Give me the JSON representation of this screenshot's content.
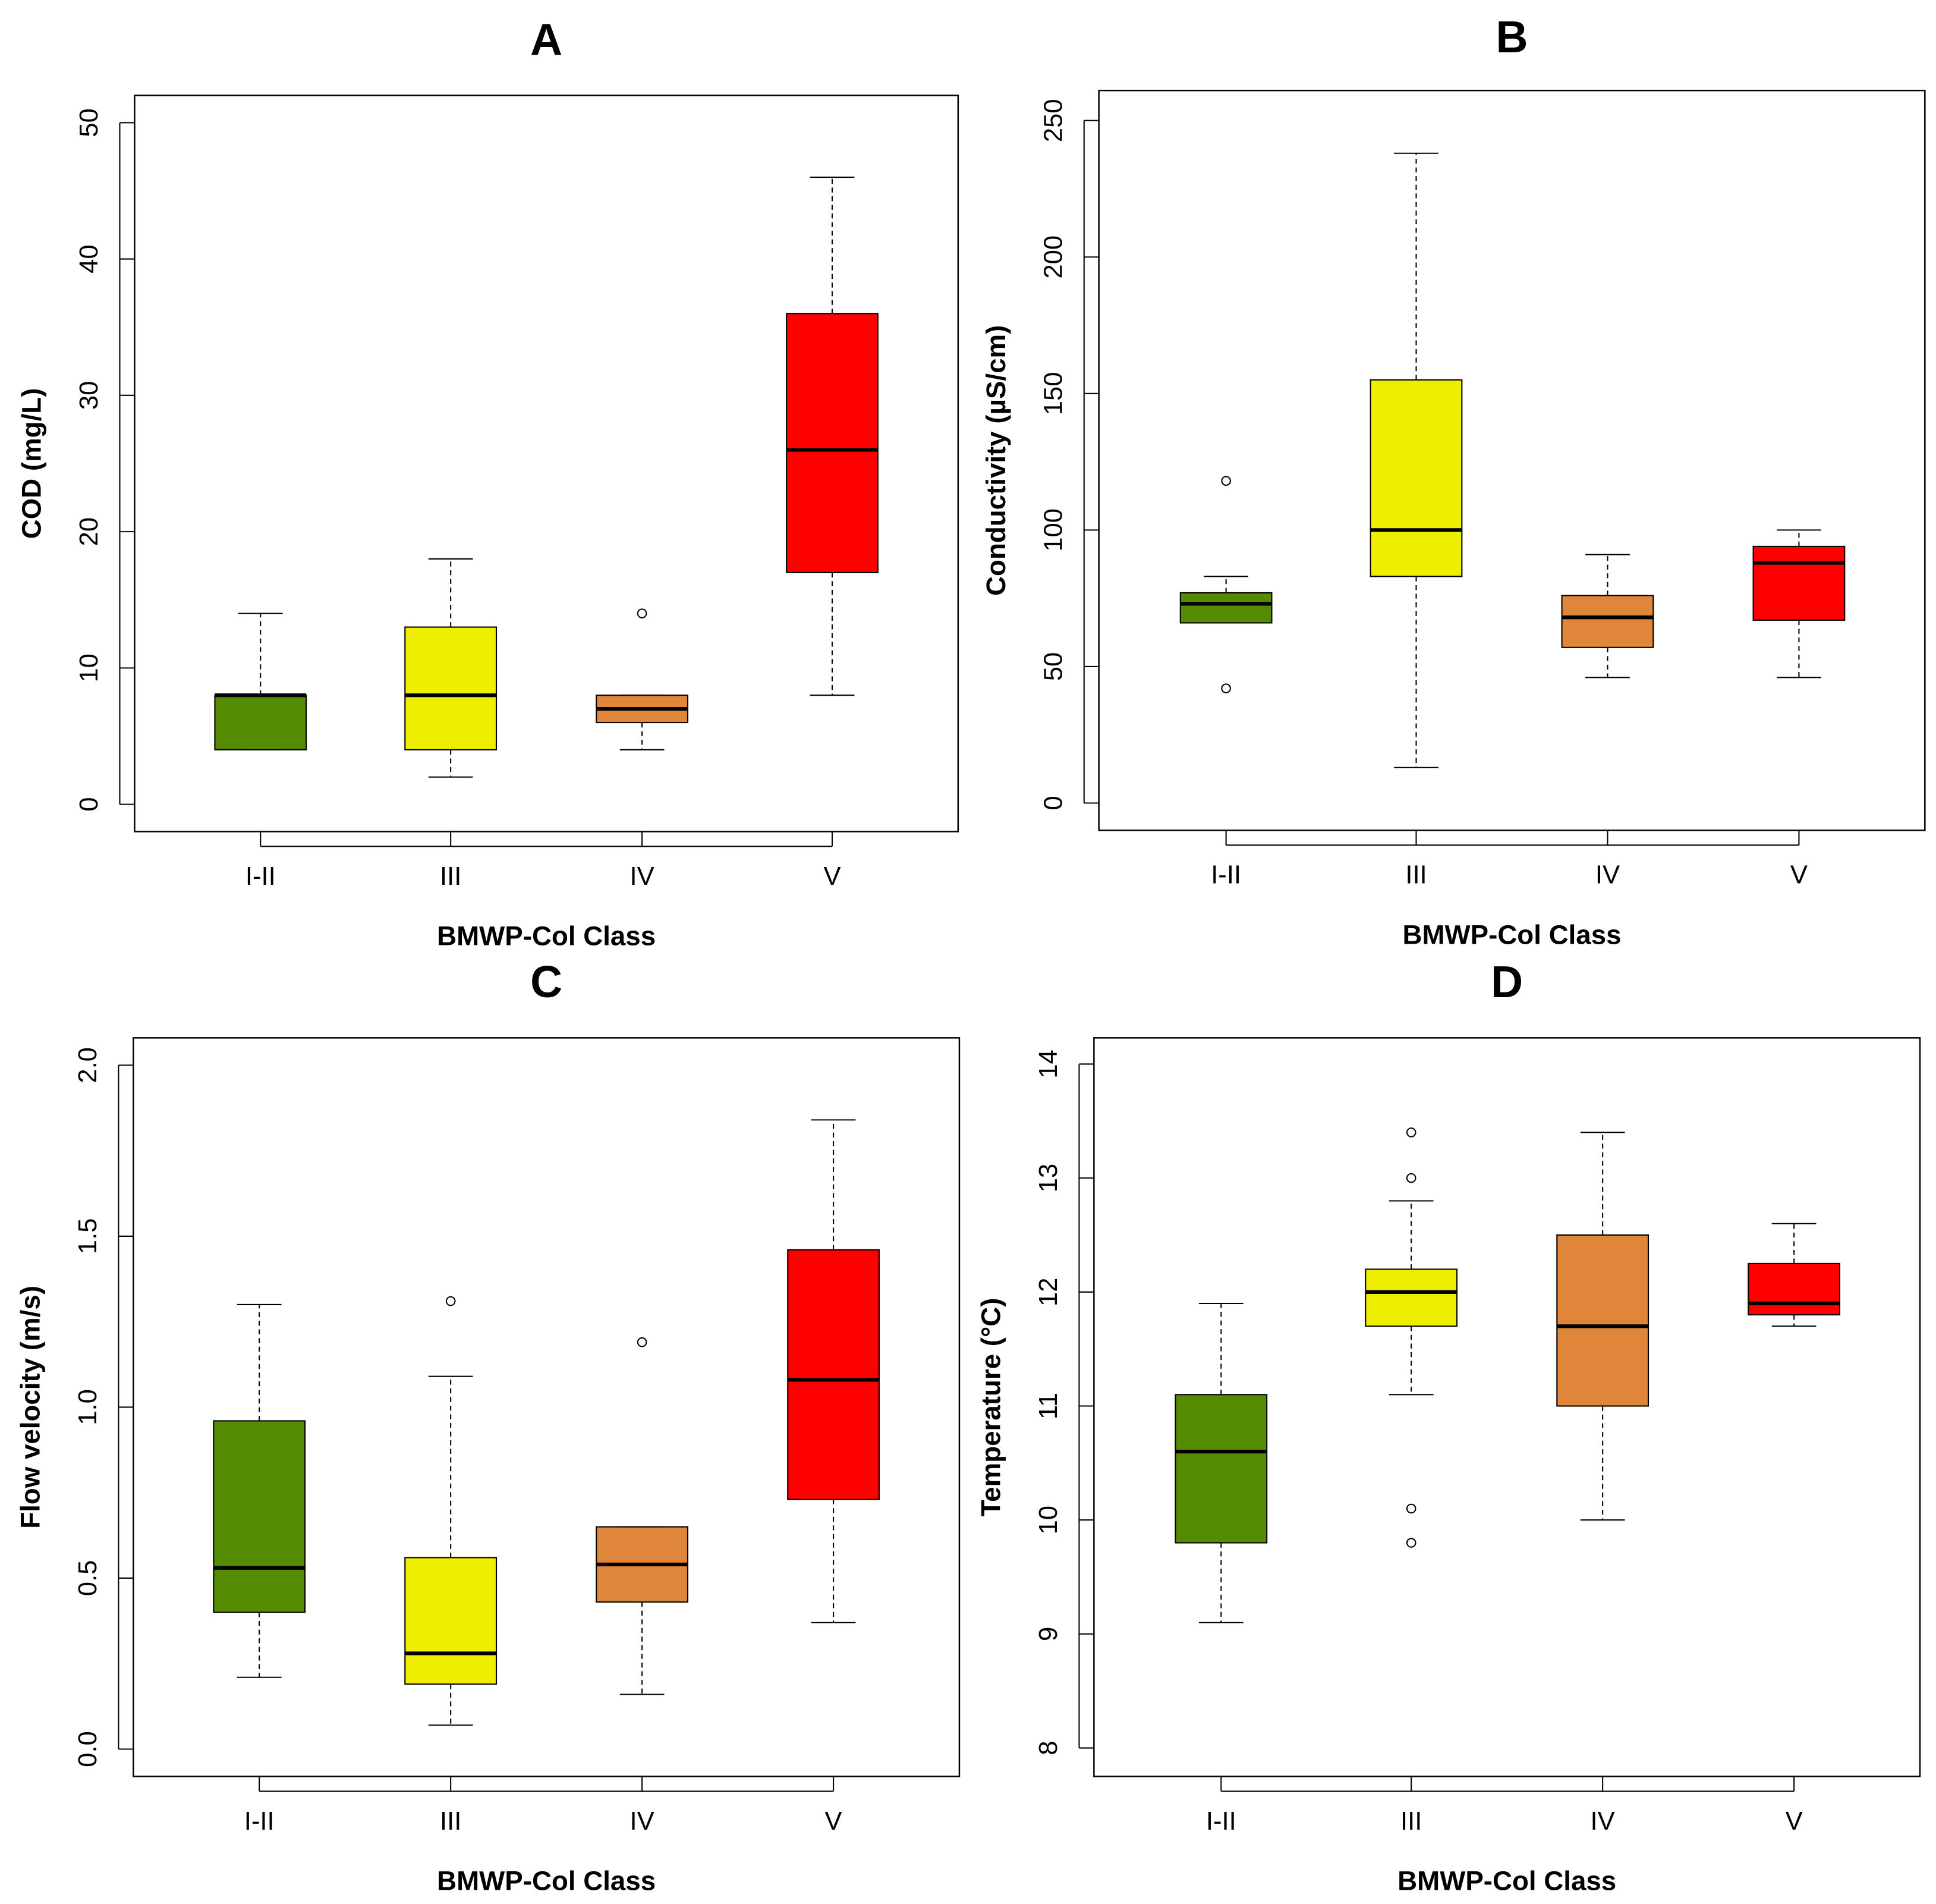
{
  "chart_data": [
    {
      "type": "box",
      "title": "A",
      "xlabel": "BMWP-Col Class",
      "ylabel": "COD (mg/L)",
      "categories": [
        "I-II",
        "III",
        "IV",
        "V"
      ],
      "yticks": [
        0,
        10,
        20,
        30,
        40,
        50
      ],
      "ylim": [
        -2,
        52
      ],
      "colors": [
        "#548B00",
        "#EEEE00",
        "#E0863A",
        "#FF0000"
      ],
      "boxes": [
        {
          "low": 4,
          "q1": 4,
          "median": 8,
          "q3": 8,
          "high": 14,
          "outliers": []
        },
        {
          "low": 2,
          "q1": 4,
          "median": 8,
          "q3": 13,
          "high": 18,
          "outliers": []
        },
        {
          "low": 4,
          "q1": 6,
          "median": 7,
          "q3": 8,
          "high": 8,
          "outliers": [
            14
          ]
        },
        {
          "low": 8,
          "q1": 17,
          "median": 26,
          "q3": 36,
          "high": 46,
          "outliers": []
        }
      ]
    },
    {
      "type": "box",
      "title": "B",
      "xlabel": "BMWP-Col Class",
      "ylabel": "Conductivity (µS/cm)",
      "categories": [
        "I-II",
        "III",
        "IV",
        "V"
      ],
      "yticks": [
        0,
        50,
        100,
        150,
        200,
        250
      ],
      "ylim": [
        -10,
        261
      ],
      "colors": [
        "#548B00",
        "#EEEE00",
        "#E0863A",
        "#FF0000"
      ],
      "boxes": [
        {
          "low": 66,
          "q1": 66,
          "median": 73,
          "q3": 77,
          "high": 83,
          "outliers": [
            118,
            42
          ]
        },
        {
          "low": 13,
          "q1": 83,
          "median": 100,
          "q3": 155,
          "high": 238,
          "outliers": []
        },
        {
          "low": 46,
          "q1": 57,
          "median": 68,
          "q3": 76,
          "high": 91,
          "outliers": []
        },
        {
          "low": 46,
          "q1": 67,
          "median": 88,
          "q3": 94,
          "high": 100,
          "outliers": []
        }
      ]
    },
    {
      "type": "box",
      "title": "C",
      "xlabel": "BMWP-Col Class",
      "ylabel": "Flow velocity (m/s)",
      "categories": [
        "I-II",
        "III",
        "IV",
        "V"
      ],
      "yticks": [
        "0.0",
        "0.5",
        "1.0",
        "1.5",
        "2.0"
      ],
      "ylim": [
        -0.08,
        2.08
      ],
      "colors": [
        "#548B00",
        "#EEEE00",
        "#E0863A",
        "#FF0000"
      ],
      "boxes": [
        {
          "low": 0.21,
          "q1": 0.4,
          "median": 0.53,
          "q3": 0.96,
          "high": 1.3,
          "outliers": []
        },
        {
          "low": 0.07,
          "q1": 0.19,
          "median": 0.28,
          "q3": 0.56,
          "high": 1.09,
          "outliers": [
            1.31
          ]
        },
        {
          "low": 0.16,
          "q1": 0.43,
          "median": 0.54,
          "q3": 0.65,
          "high": 0.65,
          "outliers": [
            1.19
          ]
        },
        {
          "low": 0.37,
          "q1": 0.73,
          "median": 1.08,
          "q3": 1.46,
          "high": 1.84,
          "outliers": []
        }
      ]
    },
    {
      "type": "box",
      "title": "D",
      "xlabel": "BMWP-Col Class",
      "ylabel": "Temperature (°C)",
      "categories": [
        "I-II",
        "III",
        "IV",
        "V"
      ],
      "yticks": [
        8,
        9,
        10,
        11,
        12,
        13,
        14
      ],
      "ylim": [
        7.75,
        14.23
      ],
      "colors": [
        "#548B00",
        "#EEEE00",
        "#E0863A",
        "#FF0000"
      ],
      "boxes": [
        {
          "low": 9.1,
          "q1": 9.8,
          "median": 10.6,
          "q3": 11.1,
          "high": 11.9,
          "outliers": []
        },
        {
          "low": 11.1,
          "q1": 11.7,
          "median": 12.0,
          "q3": 12.2,
          "high": 12.8,
          "outliers": [
            13.4,
            13.0,
            10.1,
            9.8
          ]
        },
        {
          "low": 10.0,
          "q1": 11.0,
          "median": 11.7,
          "q3": 12.5,
          "high": 13.4,
          "outliers": []
        },
        {
          "low": 11.7,
          "q1": 11.8,
          "median": 11.9,
          "q3": 12.25,
          "high": 12.6,
          "outliers": []
        }
      ]
    }
  ]
}
